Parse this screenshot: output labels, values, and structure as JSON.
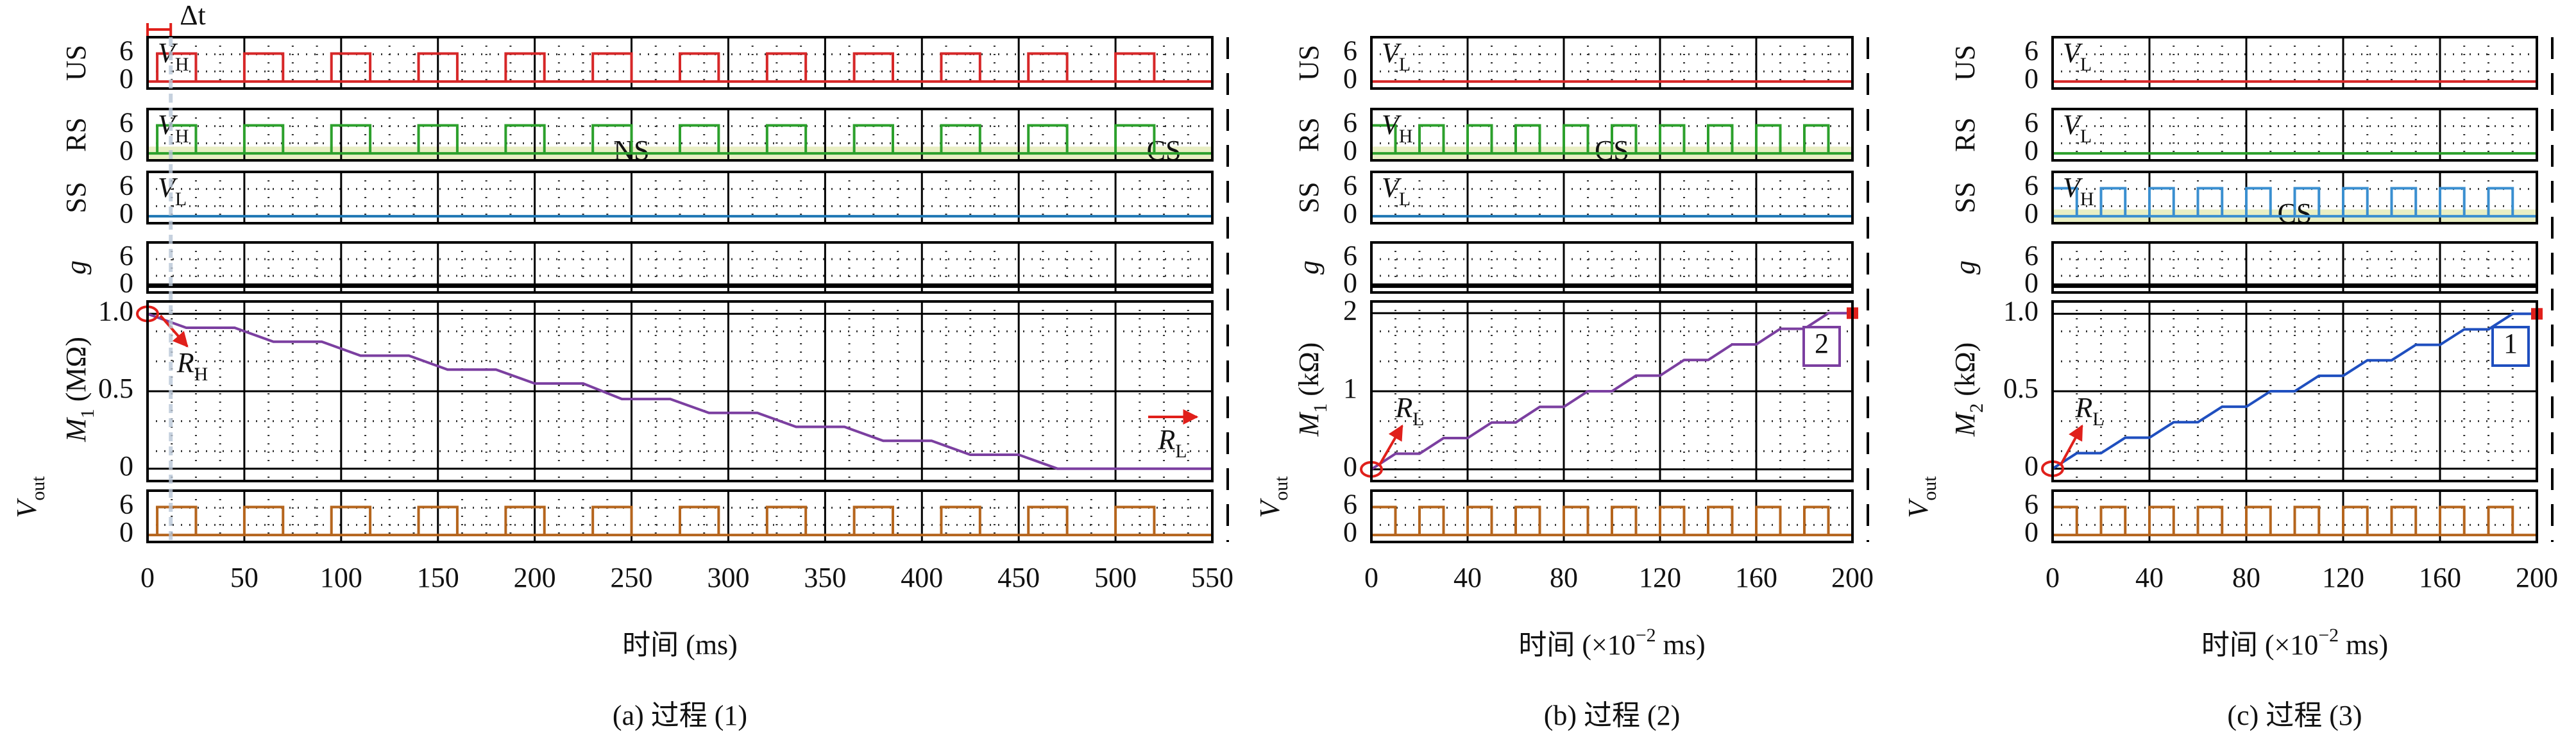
{
  "chart_data": [
    {
      "type": "stacked-line",
      "caption": "(a) 过程 (1)",
      "xlabel": [
        "时间 (ms)"
      ],
      "xlim": [
        0,
        550
      ],
      "xticks": [
        0,
        50,
        100,
        150,
        200,
        250,
        300,
        350,
        400,
        450,
        500,
        550
      ],
      "delta_t": {
        "label": "Δt",
        "range": [
          0,
          12
        ]
      },
      "rows": [
        {
          "type": "pulse",
          "label": [
            "US"
          ],
          "color": "#d62728",
          "ylim": [
            -1.5,
            9.5
          ],
          "yticks": [
            0,
            6
          ],
          "low": 0,
          "level": 6,
          "level_label": [
            "V",
            "H"
          ],
          "pulses": [
            [
              5,
              25
            ],
            [
              50,
              70
            ],
            [
              95,
              115
            ],
            [
              140,
              160
            ],
            [
              185,
              205
            ],
            [
              230,
              250
            ],
            [
              275,
              295
            ],
            [
              320,
              340
            ],
            [
              365,
              385
            ],
            [
              410,
              430
            ],
            [
              455,
              475
            ],
            [
              500,
              520
            ]
          ]
        },
        {
          "type": "pulse",
          "label": [
            "RS"
          ],
          "color": "#2ca02c",
          "ylim": [
            -1.5,
            9.5
          ],
          "yticks": [
            0,
            6
          ],
          "low": 0,
          "level": 6,
          "level_label": [
            "V",
            "H"
          ],
          "pulses": [
            [
              5,
              25
            ],
            [
              50,
              70
            ],
            [
              95,
              115
            ],
            [
              140,
              160
            ],
            [
              185,
              205
            ],
            [
              230,
              250
            ],
            [
              275,
              295
            ],
            [
              320,
              340
            ],
            [
              365,
              385
            ],
            [
              410,
              430
            ],
            [
              455,
              475
            ],
            [
              500,
              520
            ]
          ],
          "bands": [
            {
              "label": "NS",
              "range": [
                0,
                500
              ]
            },
            {
              "label": "CS",
              "range": [
                500,
                550
              ]
            }
          ]
        },
        {
          "type": "pulse",
          "label": [
            "SS"
          ],
          "color": "#1f77b4",
          "ylim": [
            -1.5,
            9.5
          ],
          "yticks": [
            0,
            6
          ],
          "low": 0,
          "level": 6,
          "level_label": [
            "V",
            "L"
          ],
          "pulses": []
        },
        {
          "type": "pulse",
          "label": [
            "g"
          ],
          "italic": true,
          "color": "#000000",
          "ylim": [
            -1.5,
            9.5
          ],
          "yticks": [
            0,
            6
          ],
          "low": 0,
          "level": 6,
          "pulses": []
        },
        {
          "type": "line",
          "label": [
            "M",
            "1",
            " (MΩ)"
          ],
          "color": "#7b3fa0",
          "ylim": [
            -0.08,
            1.08
          ],
          "yticks": [
            0,
            0.5,
            {
              "value": 1,
              "label": "1.0"
            }
          ],
          "x": [
            0,
            20,
            45,
            65,
            90,
            110,
            135,
            155,
            180,
            200,
            225,
            245,
            270,
            290,
            315,
            335,
            360,
            380,
            405,
            425,
            450,
            470,
            550
          ],
          "values": [
            1.0,
            0.91,
            0.91,
            0.82,
            0.82,
            0.73,
            0.73,
            0.64,
            0.64,
            0.55,
            0.55,
            0.45,
            0.45,
            0.36,
            0.36,
            0.27,
            0.27,
            0.18,
            0.18,
            0.09,
            0.09,
            0,
            0
          ],
          "annotations": [
            {
              "text": [
                "R",
                "H"
              ]
            },
            {
              "text": [
                "R",
                "L"
              ]
            }
          ]
        },
        {
          "type": "pulse",
          "label": [
            "V",
            "out"
          ],
          "color": "#b5651d",
          "ylim": [
            -1.5,
            9.5
          ],
          "yticks": [
            0,
            6
          ],
          "low": 0,
          "level": 6,
          "pulses": [
            [
              5,
              25
            ],
            [
              50,
              70
            ],
            [
              95,
              115
            ],
            [
              140,
              160
            ],
            [
              185,
              205
            ],
            [
              230,
              250
            ],
            [
              275,
              295
            ],
            [
              320,
              340
            ],
            [
              365,
              385
            ],
            [
              410,
              430
            ],
            [
              455,
              475
            ],
            [
              500,
              520
            ]
          ]
        }
      ]
    },
    {
      "type": "stacked-line",
      "caption": "(b) 过程 (2)",
      "xlabel": [
        "时间 (×10",
        "−2",
        " ms)"
      ],
      "xlim": [
        0,
        200
      ],
      "xticks": [
        0,
        40,
        80,
        120,
        160,
        200
      ],
      "rows": [
        {
          "type": "pulse",
          "label": [
            "US"
          ],
          "color": "#d62728",
          "ylim": [
            -1.5,
            9.5
          ],
          "yticks": [
            0,
            6
          ],
          "low": 0,
          "level": 6,
          "level_label": [
            "V",
            "L"
          ],
          "pulses": []
        },
        {
          "type": "pulse",
          "label": [
            "RS"
          ],
          "color": "#2ca02c",
          "ylim": [
            -1.5,
            9.5
          ],
          "yticks": [
            0,
            6
          ],
          "low": 0,
          "level": 6,
          "level_label": [
            "V",
            "H"
          ],
          "pulses": [
            [
              0,
              10
            ],
            [
              20,
              30
            ],
            [
              40,
              50
            ],
            [
              60,
              70
            ],
            [
              80,
              90
            ],
            [
              100,
              110
            ],
            [
              120,
              130
            ],
            [
              140,
              150
            ],
            [
              160,
              170
            ],
            [
              180,
              190
            ]
          ],
          "bands": [
            {
              "label": "CS",
              "range": [
                0,
                200
              ]
            }
          ]
        },
        {
          "type": "pulse",
          "label": [
            "SS"
          ],
          "color": "#1f77b4",
          "ylim": [
            -1.5,
            9.5
          ],
          "yticks": [
            0,
            6
          ],
          "low": 0,
          "level": 6,
          "level_label": [
            "V",
            "L"
          ],
          "pulses": []
        },
        {
          "type": "pulse",
          "label": [
            "g"
          ],
          "italic": true,
          "color": "#000000",
          "ylim": [
            -1.5,
            9.5
          ],
          "yticks": [
            0,
            6
          ],
          "low": 0,
          "level": 6,
          "pulses": []
        },
        {
          "type": "line",
          "label": [
            "M",
            "1",
            " (kΩ)"
          ],
          "color": "#7b3fa0",
          "end_marker_color": "#e0201b",
          "ylim": [
            -0.15,
            2.15
          ],
          "yticks": [
            0,
            1,
            2
          ],
          "x": [
            0,
            10,
            20,
            30,
            40,
            50,
            60,
            70,
            80,
            90,
            100,
            110,
            120,
            130,
            140,
            150,
            160,
            170,
            180,
            190,
            200
          ],
          "values": [
            0,
            0.2,
            0.2,
            0.4,
            0.4,
            0.6,
            0.6,
            0.8,
            0.8,
            1.0,
            1.0,
            1.2,
            1.2,
            1.4,
            1.4,
            1.6,
            1.6,
            1.8,
            1.8,
            2.0,
            2.0
          ],
          "annotations": [
            {
              "text": [
                "R",
                "L"
              ]
            },
            {
              "text": [
                "2"
              ],
              "boxed": true
            }
          ]
        },
        {
          "type": "pulse",
          "label": [
            "V",
            "out"
          ],
          "color": "#b5651d",
          "ylim": [
            -1.5,
            9.5
          ],
          "yticks": [
            0,
            6
          ],
          "low": 0,
          "level": 6,
          "pulses": [
            [
              0,
              10
            ],
            [
              20,
              30
            ],
            [
              40,
              50
            ],
            [
              60,
              70
            ],
            [
              80,
              90
            ],
            [
              100,
              110
            ],
            [
              120,
              130
            ],
            [
              140,
              150
            ],
            [
              160,
              170
            ],
            [
              180,
              190
            ]
          ]
        }
      ]
    },
    {
      "type": "stacked-line",
      "caption": "(c) 过程 (3)",
      "xlabel": [
        "时间 (×10",
        "−2",
        " ms)"
      ],
      "xlim": [
        0,
        200
      ],
      "xticks": [
        0,
        40,
        80,
        120,
        160,
        200
      ],
      "rows": [
        {
          "type": "pulse",
          "label": [
            "US"
          ],
          "color": "#d62728",
          "ylim": [
            -1.5,
            9.5
          ],
          "yticks": [
            0,
            6
          ],
          "low": 0,
          "level": 6,
          "level_label": [
            "V",
            "L"
          ],
          "pulses": []
        },
        {
          "type": "pulse",
          "label": [
            "RS"
          ],
          "color": "#2ca02c",
          "ylim": [
            -1.5,
            9.5
          ],
          "yticks": [
            0,
            6
          ],
          "low": 0,
          "level": 6,
          "level_label": [
            "V",
            "L"
          ],
          "pulses": []
        },
        {
          "type": "pulse",
          "label": [
            "SS"
          ],
          "color": "#3a8fd0",
          "ylim": [
            -1.5,
            9.5
          ],
          "yticks": [
            0,
            6
          ],
          "low": 0,
          "level": 6,
          "level_label": [
            "V",
            "H"
          ],
          "pulses": [
            [
              0,
              10
            ],
            [
              20,
              30
            ],
            [
              40,
              50
            ],
            [
              60,
              70
            ],
            [
              80,
              90
            ],
            [
              100,
              110
            ],
            [
              120,
              130
            ],
            [
              140,
              150
            ],
            [
              160,
              170
            ],
            [
              180,
              190
            ]
          ],
          "bands": [
            {
              "label": "CS",
              "range": [
                0,
                200
              ]
            }
          ]
        },
        {
          "type": "pulse",
          "label": [
            "g"
          ],
          "italic": true,
          "color": "#000000",
          "ylim": [
            -1.5,
            9.5
          ],
          "yticks": [
            0,
            6
          ],
          "low": 0,
          "level": 6,
          "pulses": []
        },
        {
          "type": "line",
          "label": [
            "M",
            "2",
            " (kΩ)"
          ],
          "color": "#1f4fbf",
          "end_marker_color": "#e0201b",
          "ylim": [
            -0.08,
            1.08
          ],
          "yticks": [
            0,
            0.5,
            {
              "value": 1,
              "label": "1.0"
            }
          ],
          "x": [
            0,
            10,
            20,
            30,
            40,
            50,
            60,
            70,
            80,
            90,
            100,
            110,
            120,
            130,
            140,
            150,
            160,
            170,
            180,
            190,
            200
          ],
          "values": [
            0,
            0.1,
            0.1,
            0.2,
            0.2,
            0.3,
            0.3,
            0.4,
            0.4,
            0.5,
            0.5,
            0.6,
            0.6,
            0.7,
            0.7,
            0.8,
            0.8,
            0.9,
            0.9,
            1.0,
            1.0
          ],
          "annotations": [
            {
              "text": [
                "R",
                "L"
              ]
            },
            {
              "text": [
                "1"
              ],
              "boxed": true
            }
          ]
        },
        {
          "type": "pulse",
          "label": [
            "V",
            "out"
          ],
          "color": "#b5651d",
          "ylim": [
            -1.5,
            9.5
          ],
          "yticks": [
            0,
            6
          ],
          "low": 0,
          "level": 6,
          "pulses": [
            [
              0,
              10
            ],
            [
              20,
              30
            ],
            [
              40,
              50
            ],
            [
              60,
              70
            ],
            [
              80,
              90
            ],
            [
              100,
              110
            ],
            [
              120,
              130
            ],
            [
              140,
              150
            ],
            [
              160,
              170
            ],
            [
              180,
              190
            ]
          ]
        }
      ]
    }
  ]
}
